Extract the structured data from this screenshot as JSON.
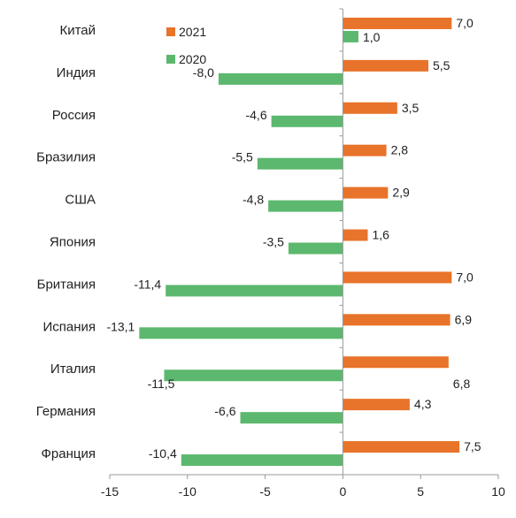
{
  "chart_data": {
    "type": "bar",
    "orientation": "horizontal",
    "categories": [
      "Китай",
      "Индия",
      "Россия",
      "Бразилия",
      "США",
      "Япония",
      "Британия",
      "Испания",
      "Италия",
      "Германия",
      "Франция"
    ],
    "series": [
      {
        "name": "2021",
        "color": "#e8732a",
        "values": [
          7.0,
          5.5,
          3.5,
          2.8,
          2.9,
          1.6,
          7.0,
          6.9,
          6.8,
          4.3,
          7.5
        ],
        "labels": [
          "7,0",
          "5,5",
          "3,5",
          "2,8",
          "2,9",
          "1,6",
          "7,0",
          "6,9",
          "6,8",
          "4,3",
          "7,5"
        ]
      },
      {
        "name": "2020",
        "color": "#5cb86e",
        "values": [
          1.0,
          -8.0,
          -4.6,
          -5.5,
          -4.8,
          -3.5,
          -11.4,
          -13.1,
          -11.5,
          -6.6,
          -10.4
        ],
        "labels": [
          "1,0",
          "-8,0",
          "-4,6",
          "-5,5",
          "-4,8",
          "-3,5",
          "-11,4",
          "-13,1",
          "-11,5",
          "-6,6",
          "-10,4"
        ]
      }
    ],
    "xlim": [
      -15,
      10
    ],
    "xticks": [
      -15,
      -10,
      -5,
      0,
      5,
      10
    ],
    "xtick_labels": [
      "-15",
      "-10",
      "-5",
      "0",
      "5",
      "10"
    ],
    "grid": false,
    "legend": "top-center",
    "title": "",
    "xlabel": "",
    "ylabel": ""
  }
}
